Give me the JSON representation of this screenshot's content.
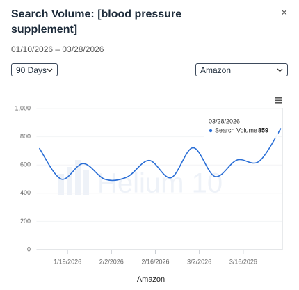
{
  "header": {
    "title": "Search Volume: [blood pressure supplement]",
    "close": "×",
    "date_range": "01/10/2026 – 03/28/2026"
  },
  "controls": {
    "period": "90 Days",
    "marketplace": "Amazon"
  },
  "chart_data": {
    "type": "line",
    "x": [
      "1/10/2026",
      "1/17/2026",
      "1/24/2026",
      "1/31/2026",
      "2/7/2026",
      "2/14/2026",
      "2/21/2026",
      "2/28/2026",
      "3/7/2026",
      "3/14/2026",
      "3/21/2026",
      "3/28/2026"
    ],
    "series": [
      {
        "name": "Search Volume",
        "color": "#2b6fd6",
        "values": [
          719,
          500,
          610,
          498,
          515,
          632,
          510,
          722,
          518,
          635,
          625,
          859
        ]
      }
    ],
    "xlim": [
      "1/10/2026",
      "3/28/2026"
    ],
    "xticks": [
      "1/19/2026",
      "2/2/2026",
      "2/16/2026",
      "3/2/2026",
      "3/16/2026"
    ],
    "ylim": [
      0,
      1000
    ],
    "yticks": [
      0,
      200,
      400,
      600,
      800,
      {
        "value": 1000,
        "label": "1,000"
      }
    ],
    "grid": true,
    "xlabel": "Amazon",
    "watermark": "Helium 10",
    "tooltip": {
      "x": "03/28/2026"
    }
  }
}
